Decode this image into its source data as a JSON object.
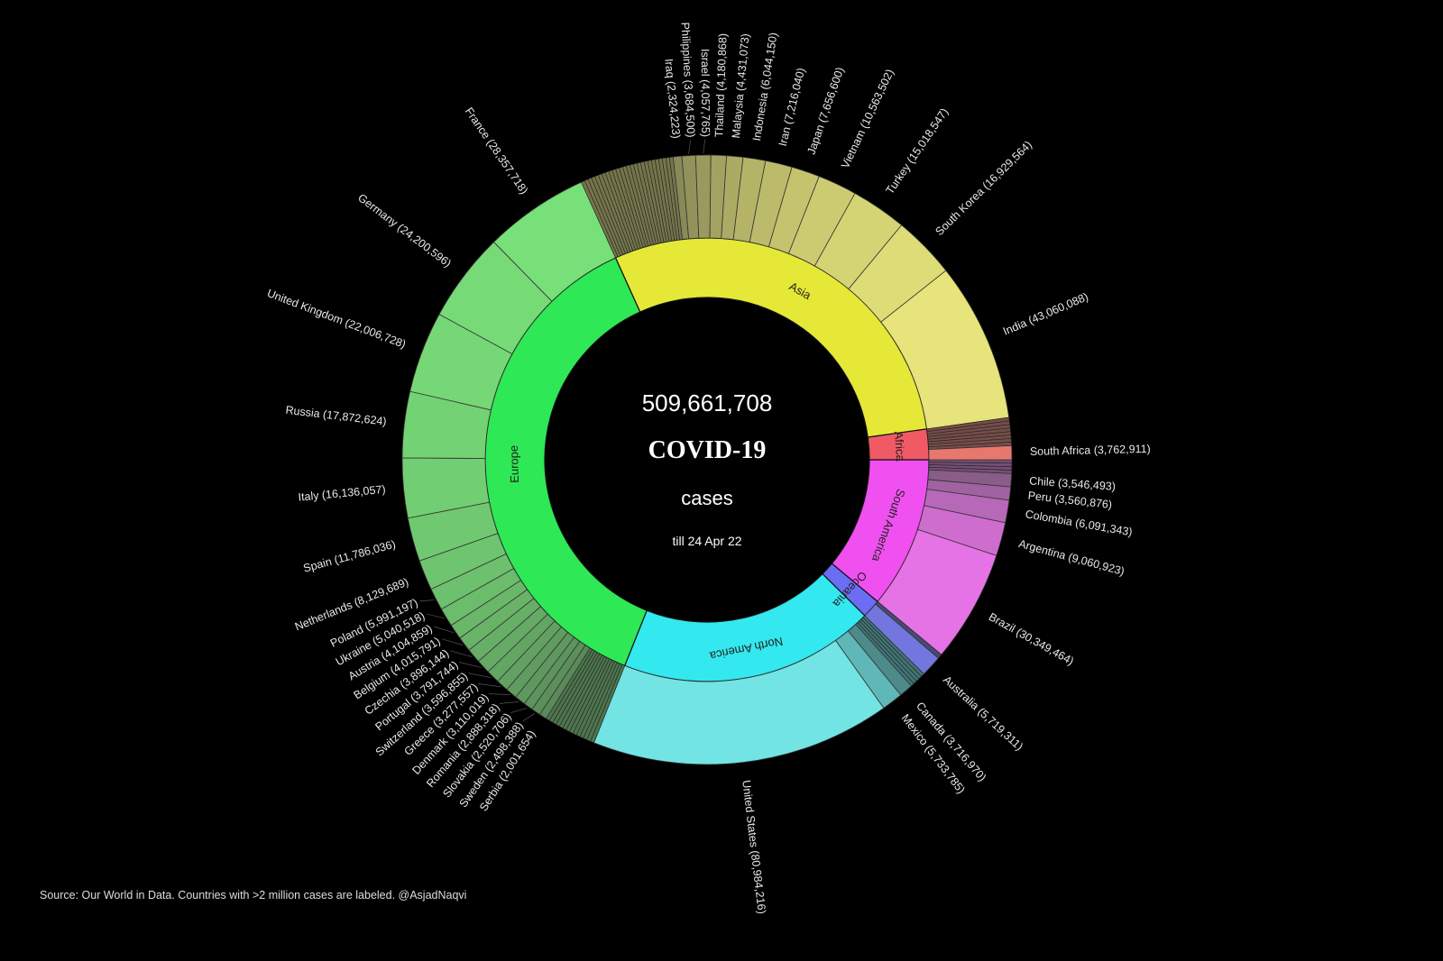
{
  "chart_data": {
    "type": "sunburst",
    "center": {
      "total": "509,661,708",
      "title": "COVID-19",
      "subtitle": "cases",
      "date": "till 24 Apr 22"
    },
    "source": "Source: Our World in Data. Countries with >2 million cases are labeled. @AsjadNaqvi",
    "continents": [
      {
        "name": "South America",
        "value": 56300000,
        "color": "#f050f0",
        "outer": [
          "#e673e6",
          "#8a5c8a"
        ],
        "countries": [
          [
            "Chile",
            3546493,
            "Chile (3,546,493)"
          ],
          [
            "Peru",
            3560876,
            "Peru (3,560,876)"
          ],
          [
            "Colombia",
            6091343,
            "Colombia (6,091,343)"
          ],
          [
            "Argentina",
            9060923,
            "Argentina (9,060,923)"
          ],
          [
            "Brazil",
            30349464,
            "Brazil (30,349,464)"
          ]
        ]
      },
      {
        "name": "Oceania",
        "value": 6961708,
        "color": "#6b6ef5",
        "outer": [
          "#7476e0",
          "#55568a"
        ],
        "countries": [
          [
            "Australia",
            5719311,
            "Australia (5,719,311)"
          ]
        ]
      },
      {
        "name": "North America",
        "value": 95000000,
        "color": "#33e8ee",
        "outer": [
          "#72e4e4",
          "#4d8a8a"
        ],
        "countries": [
          [
            "Canada",
            3716970,
            "Canada (3,716,970)"
          ],
          [
            "Mexico",
            5733785,
            "Mexico (5,733,785)"
          ],
          [
            "United States",
            80984216,
            "United States (80,984,216)"
          ]
        ]
      },
      {
        "name": "Europe",
        "value": 189500000,
        "color": "#2ee856",
        "outer": [
          "#78e078",
          "#5a8a5a"
        ],
        "countries": [
          [
            "Serbia",
            2001654,
            "Serbia (2,001,654)"
          ],
          [
            "Sweden",
            2498388,
            "Sweden (2,498,388)"
          ],
          [
            "Slovakia",
            2520706,
            "Slovakia (2,520,706)"
          ],
          [
            "Romania",
            2888318,
            "Romania (2,888,318)"
          ],
          [
            "Denmark",
            3110019,
            "Denmark (3,110,019)"
          ],
          [
            "Greece",
            3277557,
            "Greece (3,277,557)"
          ],
          [
            "Switzerland",
            3596855,
            "Switzerland (3,596,855)"
          ],
          [
            "Portugal",
            3791744,
            "Portugal (3,791,744)"
          ],
          [
            "Czechia",
            3896144,
            "Czechia (3,896,144)"
          ],
          [
            "Belgium",
            4015791,
            "Belgium (4,015,791)"
          ],
          [
            "Austria",
            4104859,
            "Austria (4,104,859)"
          ],
          [
            "Ukraine",
            5040518,
            "Ukraine (5,040,518)"
          ],
          [
            "Poland",
            5991197,
            "Poland (5,991,197)"
          ],
          [
            "Netherlands",
            8129689,
            "Netherlands (8,129,689)"
          ],
          [
            "Spain",
            11786036,
            "Spain (11,786,036)"
          ],
          [
            "Italy",
            16136057,
            "Italy (16,136,057)"
          ],
          [
            "Russia",
            17872624,
            "Russia (17,872,624)"
          ],
          [
            "United Kingdom",
            22006728,
            "United Kingdom (22,006,728)"
          ],
          [
            "Germany",
            24200596,
            "Germany (24,200,596)"
          ],
          [
            "France",
            28357718,
            "France (28,357,718)"
          ]
        ]
      },
      {
        "name": "Asia",
        "value": 150600000,
        "color": "#e5e836",
        "outer": [
          "#e6e47a",
          "#8a8a58"
        ],
        "countries": [
          [
            "Iraq",
            2324223,
            "Iraq (2,324,223)"
          ],
          [
            "Philippines",
            3684500,
            "Philippines (3,684,500)"
          ],
          [
            "Israel",
            4057765,
            "Israel (4,057,765)"
          ],
          [
            "Thailand",
            4180868,
            "Thailand (4,180,868)"
          ],
          [
            "Malaysia",
            4431073,
            "Malaysia (4,431,073)"
          ],
          [
            "Indonesia",
            6044150,
            "Indonesia (6,044,150)"
          ],
          [
            "Iran",
            7216040,
            "Iran (7,216,040)"
          ],
          [
            "Japan",
            7656600,
            "Japan (7,656,600)"
          ],
          [
            "Vietnam",
            10563502,
            "Vietnam (10,563,502)"
          ],
          [
            "Turkey",
            15018547,
            "Turkey (15,018,547)"
          ],
          [
            "South Korea",
            16929564,
            "South Korea (16,929,564)"
          ],
          [
            "India",
            43060088,
            "India (43,060,088)"
          ]
        ]
      },
      {
        "name": "Africa",
        "value": 11300000,
        "color": "#f05a64",
        "outer": [
          "#e8786e",
          "#8a5a55"
        ],
        "countries": [
          [
            "South Africa",
            3762911,
            "South Africa (3,762,911)"
          ]
        ]
      }
    ]
  }
}
